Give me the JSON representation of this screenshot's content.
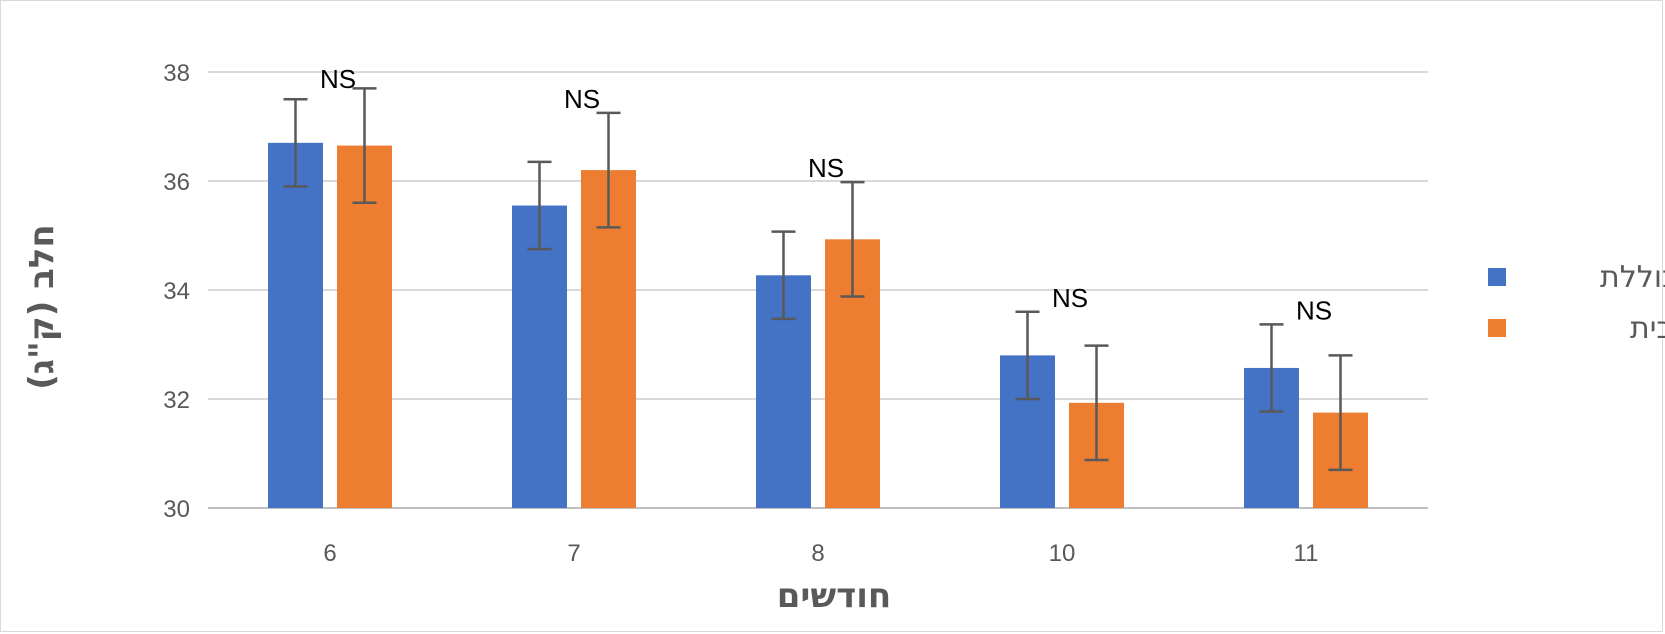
{
  "chart_data": {
    "type": "bar",
    "xlabel": "חודשים",
    "ylabel": "חלב (ק\"ג)",
    "categories": [
      "6",
      "7",
      "8",
      "10",
      "11"
    ],
    "ylim": [
      30,
      38
    ],
    "yticks": [
      30,
      32,
      34,
      36,
      38
    ],
    "grid": true,
    "legend_position": "right",
    "series": [
      {
        "name": "כוללת",
        "color": "#4472C4",
        "values": [
          36.7,
          35.55,
          34.27,
          32.8,
          32.57
        ],
        "errors": [
          0.8,
          0.8,
          0.8,
          0.8,
          0.8
        ]
      },
      {
        "name": "מרחבית",
        "color": "#ED7D31",
        "values": [
          36.65,
          36.2,
          34.93,
          31.93,
          31.75
        ],
        "errors": [
          1.05,
          1.05,
          1.05,
          1.05,
          1.05
        ]
      }
    ],
    "annotations": [
      "NS",
      "NS",
      "NS",
      "NS",
      "NS"
    ]
  }
}
